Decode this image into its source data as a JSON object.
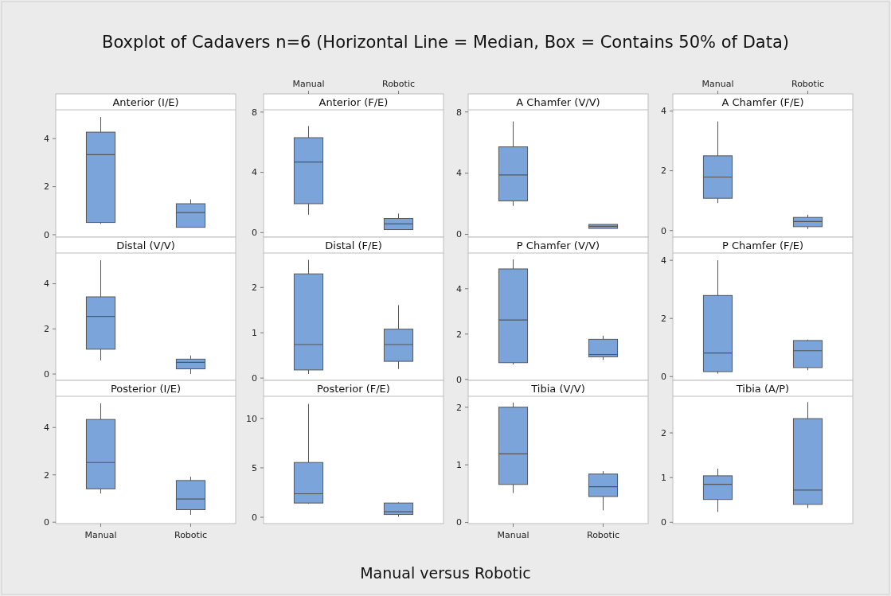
{
  "chart_data": [
    {
      "type": "box",
      "title": "Anterior (I/E)",
      "categories": [
        null,
        null
      ],
      "ylim": [
        -0.1,
        5.2
      ],
      "yticks": [
        0,
        2,
        4
      ],
      "tick_labels": "y",
      "annotations": [
        "Boxplot of Cadavers n=6 (Horizontal Line = Median, Box = Contains 50% of Data)",
        "Manual versus Robotic"
      ],
      "series": [
        {
          "color": "#7ba5da",
          "boxes": [
            {
              "low": 0.45,
              "q1": 0.51,
              "median": 3.33,
              "q3": 4.27,
              "high": 4.9
            },
            {
              "low": 0.31,
              "q1": 0.31,
              "median": 0.92,
              "q3": 1.29,
              "high": 1.47
            }
          ]
        }
      ]
    },
    {
      "type": "box",
      "title": "Anterior (F/E)",
      "categories": [
        "Manual",
        "Robotic"
      ],
      "ylim": [
        -0.3,
        8.15
      ],
      "yticks": [
        0,
        4,
        8
      ],
      "series": [
        {
          "color": "#7ba5da",
          "boxes": [
            {
              "low": 1.19,
              "q1": 1.92,
              "median": 4.68,
              "q3": 6.3,
              "high": 7.07
            },
            {
              "low": 0.2,
              "q1": 0.2,
              "median": 0.58,
              "q3": 0.94,
              "high": 1.26
            }
          ]
        }
      ]
    },
    {
      "type": "box",
      "title": "A Chamfer (V/V)",
      "categories": [
        null,
        null
      ],
      "ylim": [
        -0.18,
        8.14
      ],
      "yticks": [
        0,
        4,
        8
      ],
      "tick_labels": "y",
      "series": [
        {
          "color": "#7ba5da",
          "boxes": [
            {
              "low": 1.86,
              "q1": 2.19,
              "median": 3.88,
              "q3": 5.72,
              "high": 7.38
            },
            {
              "low": 0.39,
              "q1": 0.39,
              "median": 0.53,
              "q3": 0.65,
              "high": 0.65
            }
          ]
        }
      ]
    },
    {
      "type": "box",
      "title": "A Chamfer (F/E)",
      "categories": [
        "Manual",
        "Robotic"
      ],
      "ylim": [
        -0.22,
        4.04
      ],
      "yticks": [
        0,
        2,
        4
      ],
      "series": [
        {
          "color": "#7ba5da",
          "boxes": [
            {
              "low": 0.92,
              "q1": 1.08,
              "median": 1.79,
              "q3": 2.5,
              "high": 3.65
            },
            {
              "low": 0.05,
              "q1": 0.13,
              "median": 0.3,
              "q3": 0.44,
              "high": 0.53
            }
          ]
        }
      ]
    },
    {
      "type": "box",
      "title": "Distal (V/V)",
      "categories": [
        null,
        null
      ],
      "ylim": [
        -0.28,
        5.36
      ],
      "yticks": [
        0,
        2,
        4
      ],
      "tick_labels": "y",
      "series": [
        {
          "color": "#7ba5da",
          "boxes": [
            {
              "low": 0.6,
              "q1": 1.1,
              "median": 2.55,
              "q3": 3.42,
              "high": 5.04
            },
            {
              "low": 0,
              "q1": 0.23,
              "median": 0.52,
              "q3": 0.66,
              "high": 0.82
            }
          ]
        }
      ]
    },
    {
      "type": "box",
      "title": "Distal (F/E)",
      "categories": [
        null,
        null
      ],
      "ylim": [
        -0.05,
        2.76
      ],
      "yticks": [
        0,
        1,
        2
      ],
      "tick_labels": "y",
      "series": [
        {
          "color": "#7ba5da",
          "boxes": [
            {
              "low": 0.09,
              "q1": 0.18,
              "median": 0.74,
              "q3": 2.3,
              "high": 2.61
            },
            {
              "low": 0.2,
              "q1": 0.37,
              "median": 0.74,
              "q3": 1.08,
              "high": 1.61
            }
          ]
        }
      ]
    },
    {
      "type": "box",
      "title": "P Chamfer (V/V)",
      "categories": [
        null,
        null
      ],
      "ylim": [
        -0.04,
        5.57
      ],
      "yticks": [
        0,
        2,
        4
      ],
      "tick_labels": "y",
      "series": [
        {
          "color": "#7ba5da",
          "boxes": [
            {
              "low": 0.66,
              "q1": 0.74,
              "median": 2.62,
              "q3": 4.87,
              "high": 5.29
            },
            {
              "low": 0.86,
              "q1": 1.0,
              "median": 1.1,
              "q3": 1.77,
              "high": 1.93
            }
          ]
        }
      ]
    },
    {
      "type": "box",
      "title": "P Chamfer (F/E)",
      "categories": [
        null,
        null
      ],
      "ylim": [
        -0.13,
        4.25
      ],
      "yticks": [
        0,
        2,
        4
      ],
      "tick_labels": "y",
      "series": [
        {
          "color": "#7ba5da",
          "boxes": [
            {
              "low": 0.1,
              "q1": 0.17,
              "median": 0.81,
              "q3": 2.79,
              "high": 4.0
            },
            {
              "low": 0.22,
              "q1": 0.31,
              "median": 0.89,
              "q3": 1.24,
              "high": 1.27
            }
          ]
        }
      ]
    },
    {
      "type": "box",
      "title": "Posterior (I/E)",
      "categories": [
        "Manual",
        "Robotic"
      ],
      "ylim": [
        -0.06,
        5.32
      ],
      "yticks": [
        0,
        2,
        4
      ],
      "series": [
        {
          "color": "#7ba5da",
          "boxes": [
            {
              "low": 1.21,
              "q1": 1.41,
              "median": 2.52,
              "q3": 4.34,
              "high": 5.02
            },
            {
              "low": 0.31,
              "q1": 0.53,
              "median": 0.98,
              "q3": 1.76,
              "high": 1.92
            }
          ]
        }
      ]
    },
    {
      "type": "box",
      "title": "Posterior (F/E)",
      "categories": [
        null,
        null
      ],
      "ylim": [
        -0.64,
        12.24
      ],
      "yticks": [
        0,
        5,
        10
      ],
      "tick_labels": "y",
      "series": [
        {
          "color": "#7ba5da",
          "boxes": [
            {
              "low": 1.36,
              "q1": 1.44,
              "median": 2.38,
              "q3": 5.54,
              "high": 11.47
            },
            {
              "low": 0.06,
              "q1": 0.28,
              "median": 0.55,
              "q3": 1.44,
              "high": 1.5
            }
          ]
        }
      ]
    },
    {
      "type": "box",
      "title": "Tibia (V/V)",
      "categories": [
        "Manual",
        "Robotic"
      ],
      "ylim": [
        -0.02,
        2.19
      ],
      "yticks": [
        0,
        1,
        2
      ],
      "series": [
        {
          "color": "#7ba5da",
          "boxes": [
            {
              "low": 0.51,
              "q1": 0.66,
              "median": 1.19,
              "q3": 2.0,
              "high": 2.08
            },
            {
              "low": 0.21,
              "q1": 0.45,
              "median": 0.62,
              "q3": 0.84,
              "high": 0.89
            }
          ]
        }
      ]
    },
    {
      "type": "box",
      "title": "Tibia (A/P)",
      "categories": [
        null,
        null
      ],
      "ylim": [
        -0.03,
        2.82
      ],
      "yticks": [
        0,
        1,
        2
      ],
      "tick_labels": "y",
      "series": [
        {
          "color": "#7ba5da",
          "boxes": [
            {
              "low": 0.23,
              "q1": 0.51,
              "median": 0.85,
              "q3": 1.04,
              "high": 1.2
            },
            {
              "low": 0.32,
              "q1": 0.4,
              "median": 0.72,
              "q3": 2.32,
              "high": 2.69
            }
          ]
        }
      ]
    }
  ]
}
